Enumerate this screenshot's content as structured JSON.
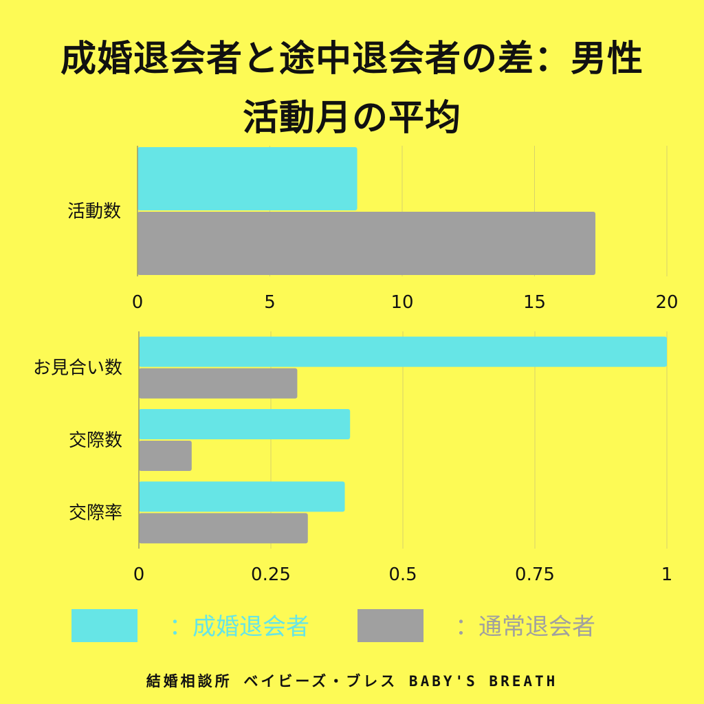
{
  "title": {
    "line1": "成婚退会者と途中退会者の差：男性",
    "line2": "活動月の平均"
  },
  "colors": {
    "background": "#fdfa55",
    "married": "#66e5e6",
    "normal": "#a0a0a0",
    "grid": "#d7d36a",
    "axis": "#9a9a6a"
  },
  "legend": [
    {
      "swatch_color": "#66e5e6",
      "text_color": "#66e5e6",
      "label": "：成婚退会者"
    },
    {
      "swatch_color": "#a0a0a0",
      "text_color": "#a0a0a0",
      "label": "：通常退会者"
    }
  ],
  "footer": "結婚相談所 ベイビーズ・ブレス BABY'S BREATH",
  "chart_data": [
    {
      "type": "bar",
      "orientation": "horizontal",
      "categories": [
        "活動数"
      ],
      "series": [
        {
          "name": "成婚退会者",
          "values": [
            8.3
          ]
        },
        {
          "name": "通常退会者",
          "values": [
            17.3
          ]
        }
      ],
      "xlim": [
        0,
        20
      ],
      "ticks": [
        0,
        5,
        10,
        15,
        20
      ],
      "tick_labels": [
        "0",
        "5",
        "10",
        "15",
        "20"
      ],
      "grid": true
    },
    {
      "type": "bar",
      "orientation": "horizontal",
      "categories": [
        "お見合い数",
        "交際数",
        "交際率"
      ],
      "series": [
        {
          "name": "成婚退会者",
          "values": [
            1.0,
            0.4,
            0.39
          ]
        },
        {
          "name": "通常退会者",
          "values": [
            0.3,
            0.1,
            0.32
          ]
        }
      ],
      "xlim": [
        0,
        1
      ],
      "ticks": [
        0,
        0.25,
        0.5,
        0.75,
        1
      ],
      "tick_labels": [
        "0",
        "0.25",
        "0.5",
        "0.75",
        "1"
      ],
      "grid": true
    }
  ]
}
